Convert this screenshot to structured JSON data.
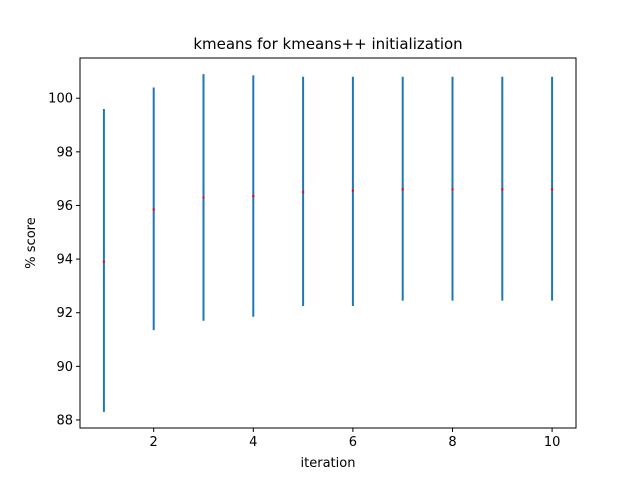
{
  "chart_data": {
    "type": "scatter",
    "title": "kmeans for kmeans++ initialization",
    "xlabel": "iteration",
    "ylabel": "% score",
    "xlim": [
      0.52,
      10.48
    ],
    "ylim": [
      87.7,
      101.5
    ],
    "xticks": [
      2,
      4,
      6,
      8,
      10
    ],
    "yticks": [
      88,
      90,
      92,
      94,
      96,
      98,
      100
    ],
    "grid": false,
    "legend": "none",
    "colors": {
      "errorbar": "#1f77b4",
      "point": "#ff0000"
    },
    "series": [
      {
        "x": [
          1,
          2,
          3,
          4,
          5,
          6,
          7,
          8,
          9,
          10
        ],
        "y": [
          93.9,
          95.85,
          96.3,
          96.35,
          96.5,
          96.55,
          96.6,
          96.6,
          96.6,
          96.6
        ],
        "yerr_low": [
          88.3,
          91.35,
          91.7,
          91.85,
          92.25,
          92.25,
          92.45,
          92.45,
          92.45,
          92.45
        ],
        "yerr_high": [
          99.6,
          100.4,
          100.9,
          100.85,
          100.8,
          100.8,
          100.8,
          100.8,
          100.8,
          100.8
        ]
      }
    ]
  }
}
